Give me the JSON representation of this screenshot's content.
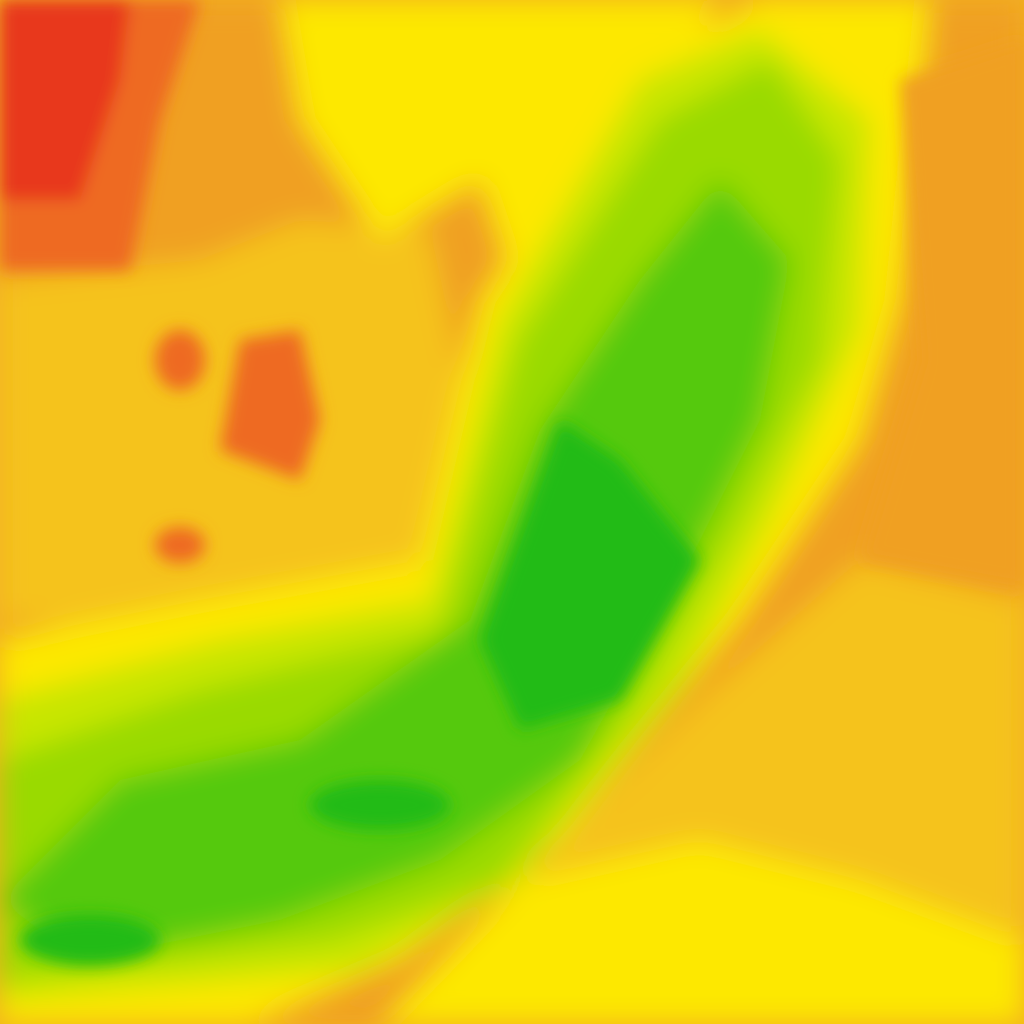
{
  "map": {
    "type": "contour-heatmap-tile",
    "palette": {
      "red": "#e8381e",
      "red_orange": "#ee6a22",
      "orange": "#f0a021",
      "amber": "#f5c31a",
      "yellow": "#fde800",
      "yellow_green": "#c8e600",
      "light_green": "#9ada00",
      "green": "#55c90c",
      "deep_green": "#22bb16"
    }
  }
}
